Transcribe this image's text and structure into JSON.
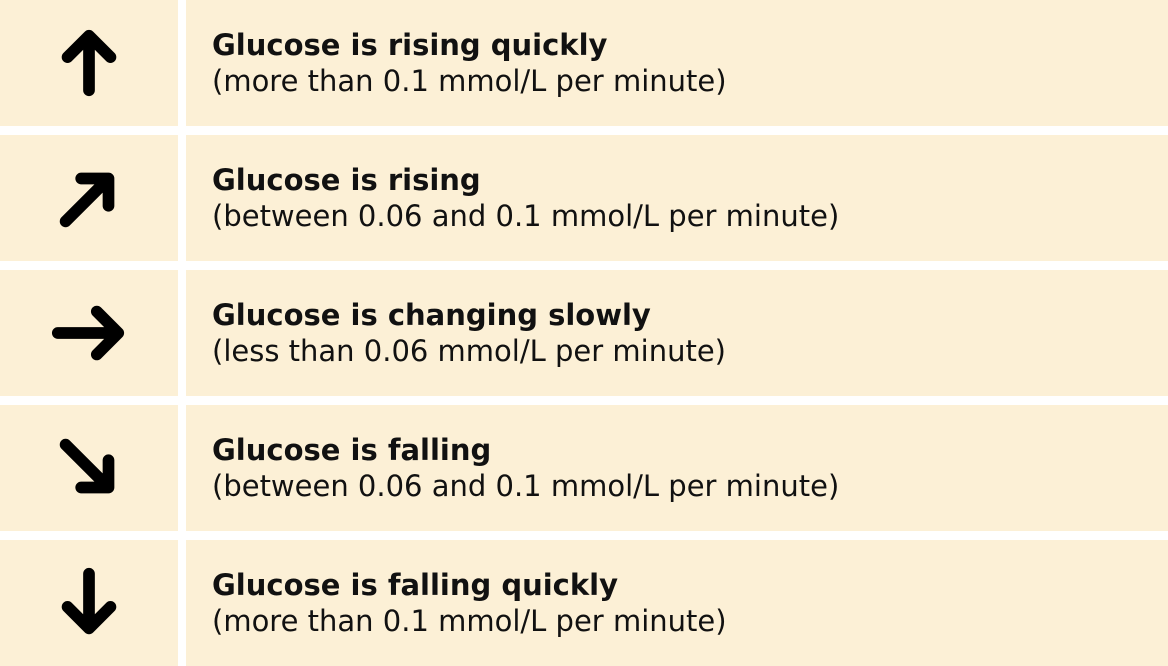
{
  "colors": {
    "cell_background": "#fcf0d6",
    "separator": "#ffffff",
    "arrow": "#000000",
    "text": "#111111"
  },
  "rows": [
    {
      "icon": "arrow-up-icon",
      "title": "Glucose is rising quickly",
      "description": "(more than 0.1 mmol/L per minute)"
    },
    {
      "icon": "arrow-up-right-icon",
      "title": "Glucose is rising",
      "description": "(between 0.06 and 0.1 mmol/L per minute)"
    },
    {
      "icon": "arrow-right-icon",
      "title": "Glucose is changing slowly",
      "description": "(less than 0.06 mmol/L per minute)"
    },
    {
      "icon": "arrow-down-right-icon",
      "title": "Glucose is falling",
      "description": "(between 0.06 and 0.1 mmol/L per minute)"
    },
    {
      "icon": "arrow-down-icon",
      "title": "Glucose is falling quickly",
      "description": "(more than 0.1 mmol/L per minute)"
    }
  ]
}
